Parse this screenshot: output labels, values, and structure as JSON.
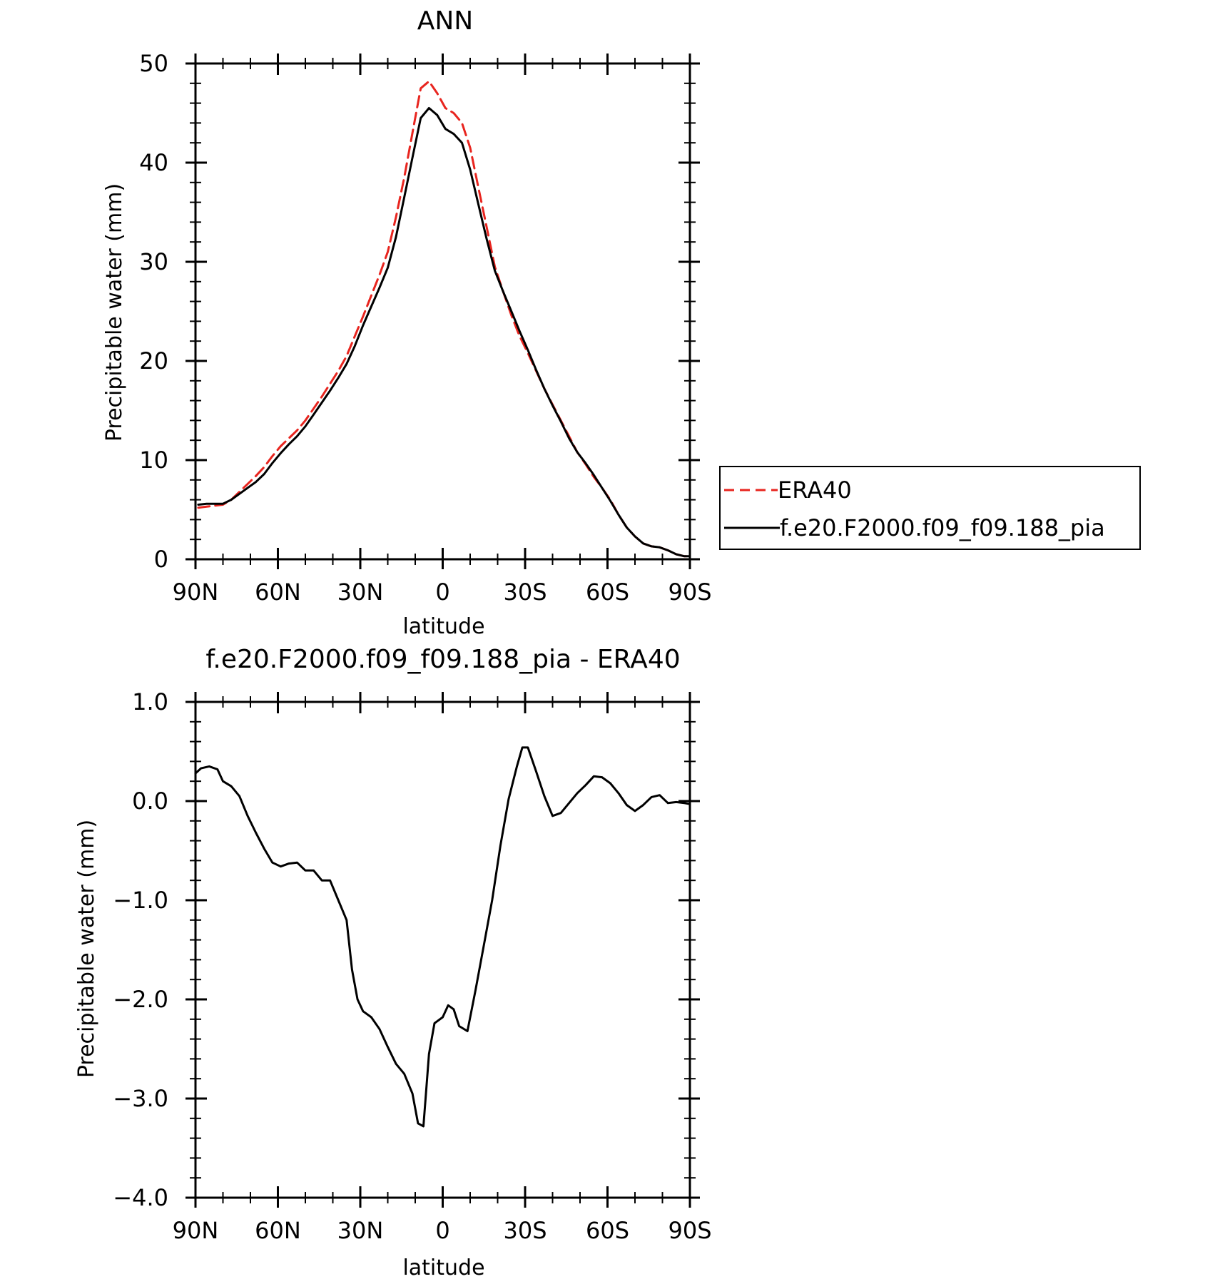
{
  "chart_data": [
    {
      "type": "line",
      "title": "ANN",
      "xlabel": "latitude",
      "ylabel": "Precipitable water (mm)",
      "xlim": [
        90,
        -90
      ],
      "ylim": [
        0,
        50
      ],
      "x_ticks": [
        90,
        60,
        30,
        0,
        -30,
        -60,
        -90
      ],
      "x_tick_labels": [
        "90N",
        "60N",
        "30N",
        "0",
        "30S",
        "60S",
        "90S"
      ],
      "y_ticks": [
        0,
        10,
        20,
        30,
        40,
        50
      ],
      "y_tick_labels": [
        "0",
        "10",
        "20",
        "30",
        "40",
        "50"
      ],
      "legend_position": "right",
      "series": [
        {
          "name": "ERA40",
          "color": "#e8251f",
          "dash": "dashed",
          "x": [
            89,
            86,
            83,
            80,
            77,
            74,
            71,
            68,
            65,
            62,
            59,
            56,
            53,
            50,
            47,
            44,
            41,
            38,
            35,
            32,
            29,
            26,
            23,
            20,
            17,
            14,
            11,
            8,
            5,
            2,
            -1,
            -4,
            -7,
            -10,
            -13,
            -16,
            -19,
            -22,
            -25,
            -28,
            -31,
            -34,
            -37,
            -40,
            -43,
            -46,
            -49,
            -52,
            -55,
            -58,
            -61,
            -64,
            -67,
            -70,
            -73,
            -76,
            -79,
            -82,
            -85,
            -88,
            -90
          ],
          "values": [
            5.2,
            5.3,
            5.4,
            5.5,
            6.0,
            6.8,
            7.6,
            8.4,
            9.3,
            10.4,
            11.4,
            12.2,
            13.0,
            14.0,
            15.2,
            16.4,
            17.7,
            19.0,
            20.5,
            22.5,
            24.5,
            26.6,
            28.7,
            31.0,
            34.5,
            38.5,
            43.0,
            47.5,
            48.2,
            47.0,
            45.5,
            45.0,
            44.0,
            41.5,
            37.5,
            33.5,
            29.5,
            27.0,
            24.6,
            22.5,
            20.8,
            19.0,
            17.2,
            15.6,
            14.0,
            12.4,
            10.8,
            9.6,
            8.3,
            7.2,
            6.0,
            4.5,
            3.2,
            2.3,
            1.6,
            1.3,
            1.2,
            0.9,
            0.5,
            0.3,
            0.3
          ]
        },
        {
          "name": "f.e20.F2000.f09_f09.188_pia",
          "color": "#000000",
          "dash": "solid",
          "x": [
            89,
            86,
            83,
            80,
            77,
            74,
            71,
            68,
            65,
            62,
            59,
            56,
            53,
            50,
            47,
            44,
            41,
            38,
            35,
            32,
            29,
            26,
            23,
            20,
            17,
            14,
            11,
            8,
            5,
            2,
            -1,
            -4,
            -7,
            -10,
            -13,
            -16,
            -19,
            -22,
            -25,
            -28,
            -31,
            -34,
            -37,
            -40,
            -43,
            -46,
            -49,
            -52,
            -55,
            -58,
            -61,
            -64,
            -67,
            -70,
            -73,
            -76,
            -79,
            -82,
            -85,
            -88,
            -90
          ],
          "values": [
            5.5,
            5.6,
            5.6,
            5.6,
            6.0,
            6.6,
            7.2,
            7.8,
            8.6,
            9.7,
            10.7,
            11.6,
            12.4,
            13.4,
            14.6,
            15.8,
            17.0,
            18.3,
            19.7,
            21.5,
            23.6,
            25.5,
            27.4,
            29.4,
            32.5,
            36.5,
            40.5,
            44.5,
            45.5,
            44.8,
            43.4,
            42.9,
            42.0,
            39.3,
            35.8,
            32.3,
            29.1,
            27.0,
            25.0,
            23.0,
            21.1,
            19.1,
            17.2,
            15.5,
            13.9,
            12.2,
            10.8,
            9.7,
            8.5,
            7.2,
            5.9,
            4.5,
            3.2,
            2.3,
            1.6,
            1.3,
            1.2,
            0.9,
            0.5,
            0.3,
            0.3
          ]
        }
      ]
    },
    {
      "type": "line",
      "title": "f.e20.F2000.f09_f09.188_pia - ERA40",
      "xlabel": "latitude",
      "ylabel": "Precipitable water (mm)",
      "xlim": [
        90,
        -90
      ],
      "ylim": [
        -4,
        1
      ],
      "x_ticks": [
        90,
        60,
        30,
        0,
        -30,
        -60,
        -90
      ],
      "x_tick_labels": [
        "90N",
        "60N",
        "30N",
        "0",
        "30S",
        "60S",
        "90S"
      ],
      "y_ticks": [
        -4,
        -3,
        -2,
        -1,
        0,
        1
      ],
      "y_tick_labels": [
        "−4.0",
        "−3.0",
        "−2.0",
        "−1.0",
        "0.0",
        "1.0"
      ],
      "series": [
        {
          "name": "",
          "color": "#000000",
          "dash": "solid",
          "x": [
            90,
            88,
            85,
            82,
            80,
            77,
            74,
            71,
            68,
            65,
            62,
            59,
            56,
            53,
            50,
            47,
            44,
            41,
            38,
            35,
            33,
            31,
            29,
            26,
            23,
            20,
            17,
            14,
            11,
            9,
            7,
            5,
            3,
            0,
            -2,
            -4,
            -6,
            -9,
            -12,
            -15,
            -18,
            -21,
            -24,
            -27,
            -29,
            -31,
            -34,
            -37,
            -40,
            -43,
            -46,
            -49,
            -52,
            -55,
            -58,
            -61,
            -64,
            -67,
            -70,
            -73,
            -76,
            -79,
            -82,
            -85,
            -88,
            -90
          ],
          "values": [
            0.28,
            0.33,
            0.35,
            0.32,
            0.2,
            0.15,
            0.05,
            -0.15,
            -0.32,
            -0.48,
            -0.62,
            -0.66,
            -0.63,
            -0.62,
            -0.7,
            -0.7,
            -0.8,
            -0.8,
            -1.0,
            -1.2,
            -1.7,
            -2.0,
            -2.12,
            -2.18,
            -2.3,
            -2.48,
            -2.65,
            -2.75,
            -2.95,
            -3.25,
            -3.28,
            -2.55,
            -2.24,
            -2.18,
            -2.06,
            -2.1,
            -2.27,
            -2.32,
            -1.9,
            -1.45,
            -1.0,
            -0.45,
            0.02,
            0.35,
            0.54,
            0.54,
            0.3,
            0.05,
            -0.15,
            -0.12,
            -0.02,
            0.08,
            0.16,
            0.25,
            0.24,
            0.18,
            0.08,
            -0.04,
            -0.1,
            -0.04,
            0.04,
            0.06,
            -0.02,
            -0.01,
            -0.02,
            -0.03
          ]
        }
      ]
    }
  ]
}
